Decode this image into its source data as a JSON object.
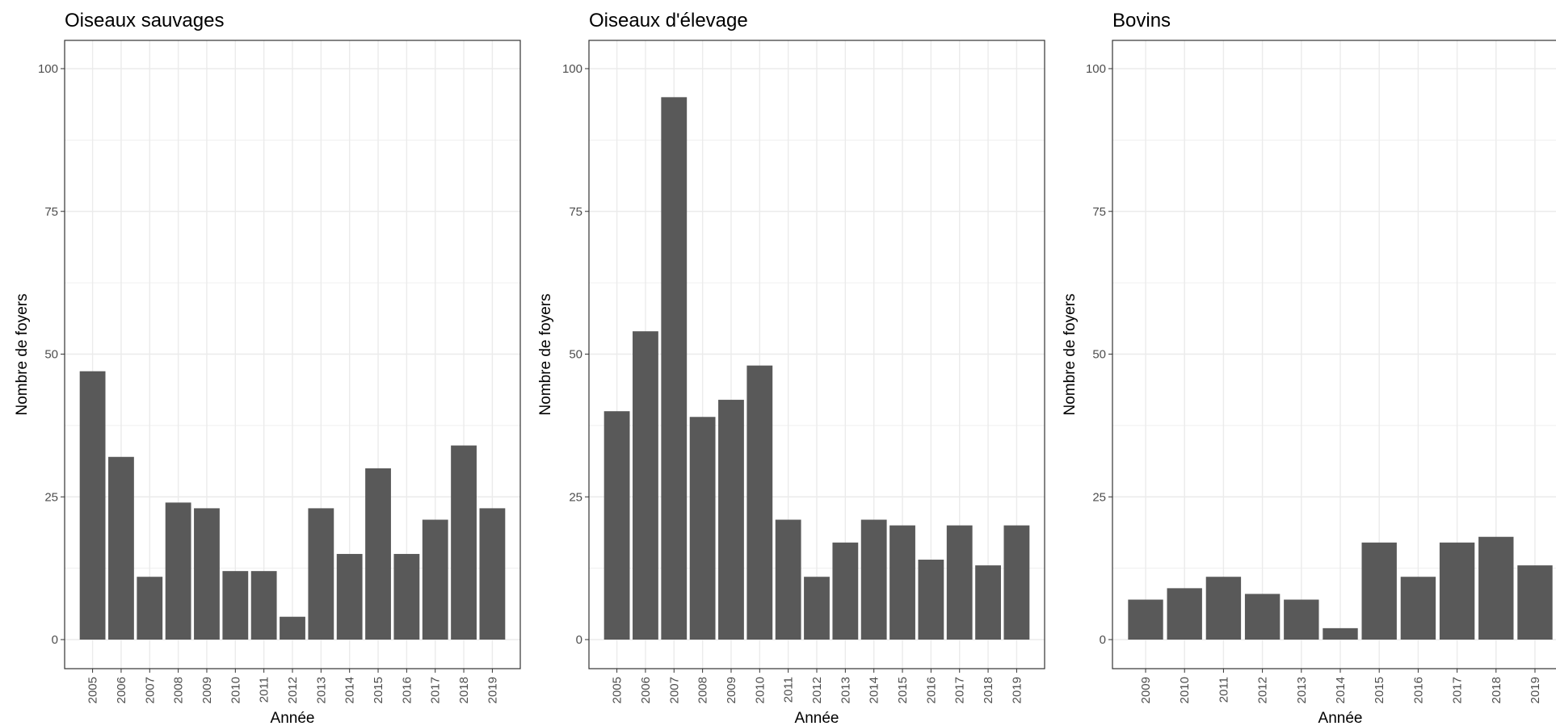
{
  "chart_data": [
    {
      "type": "bar",
      "title": "Oiseaux sauvages",
      "xlabel": "Année",
      "ylabel": "Nombre de foyers",
      "ylim": [
        0,
        100
      ],
      "yticks": [
        "0",
        "25",
        "50",
        "75",
        "100"
      ],
      "categories": [
        "2005",
        "2006",
        "2007",
        "2008",
        "2009",
        "2010",
        "2011",
        "2012",
        "2013",
        "2014",
        "2015",
        "2016",
        "2017",
        "2018",
        "2019"
      ],
      "values": [
        47,
        32,
        11,
        24,
        23,
        12,
        12,
        4,
        23,
        15,
        30,
        15,
        21,
        34,
        23
      ],
      "grid": true
    },
    {
      "type": "bar",
      "title": "Oiseaux d'élevage",
      "xlabel": "Année",
      "ylabel": "Nombre de foyers",
      "ylim": [
        0,
        100
      ],
      "yticks": [
        "0",
        "25",
        "50",
        "75",
        "100"
      ],
      "categories": [
        "2005",
        "2006",
        "2007",
        "2008",
        "2009",
        "2010",
        "2011",
        "2012",
        "2013",
        "2014",
        "2015",
        "2016",
        "2017",
        "2018",
        "2019"
      ],
      "values": [
        40,
        54,
        95,
        39,
        42,
        48,
        21,
        11,
        17,
        21,
        20,
        14,
        20,
        13,
        20
      ],
      "grid": true
    },
    {
      "type": "bar",
      "title": "Bovins",
      "xlabel": "Année",
      "ylabel": "Nombre de foyers",
      "ylim": [
        0,
        100
      ],
      "yticks": [
        "0",
        "25",
        "50",
        "75",
        "100"
      ],
      "categories": [
        "2009",
        "2010",
        "2011",
        "2012",
        "2013",
        "2014",
        "2015",
        "2016",
        "2017",
        "2018",
        "2019"
      ],
      "values": [
        7,
        9,
        11,
        8,
        7,
        2,
        17,
        11,
        17,
        18,
        13
      ],
      "grid": true
    }
  ],
  "colors": {
    "bar": "#595959",
    "grid": "#ebebeb",
    "panel_border": "#333333",
    "tick_text": "#4d4d4d"
  }
}
